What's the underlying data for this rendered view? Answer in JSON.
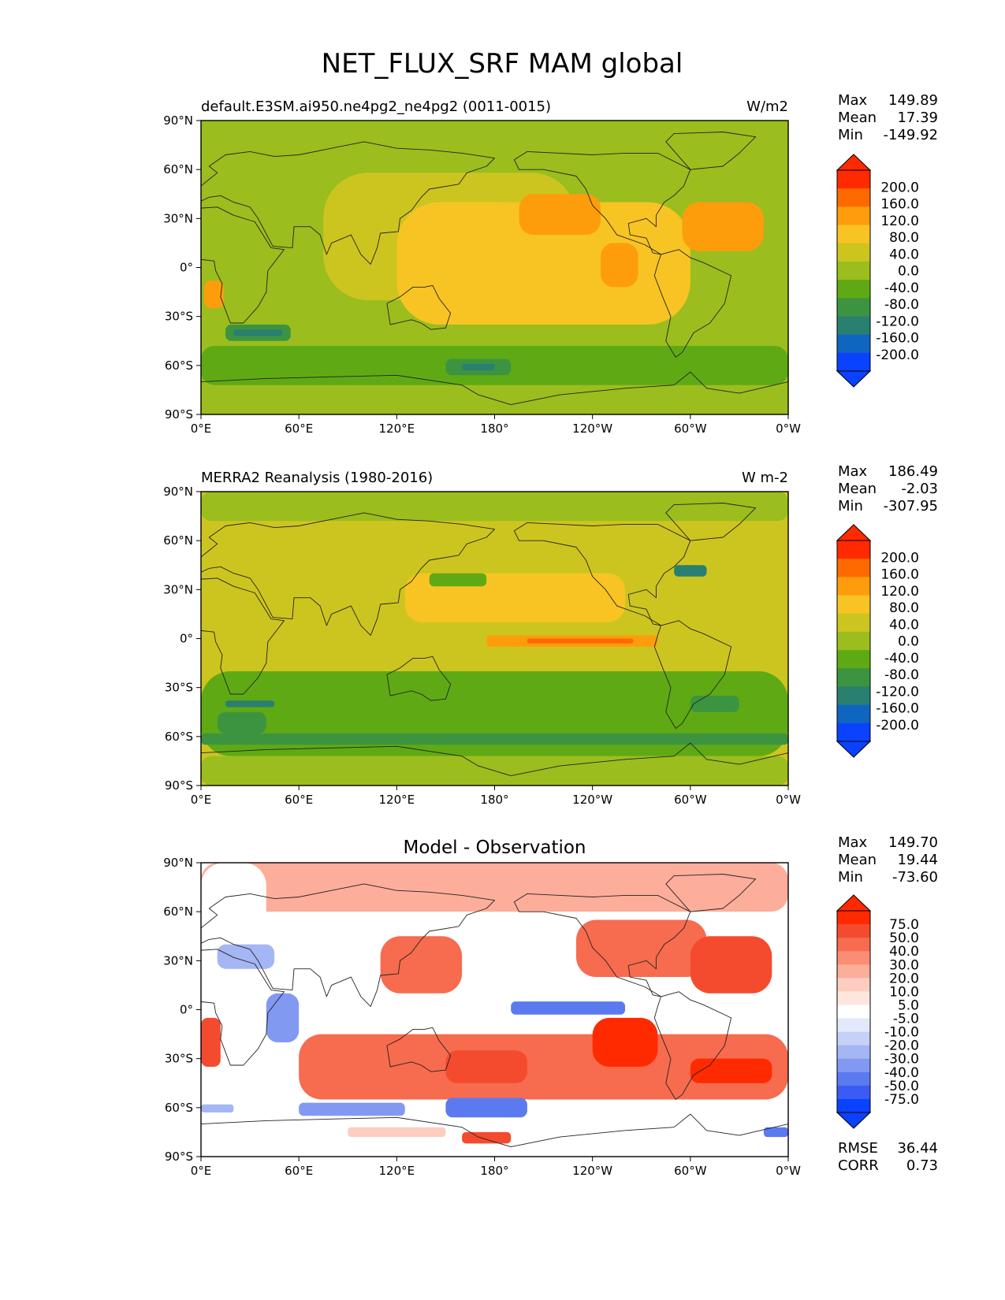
{
  "figure_title": "NET_FLUX_SRF MAM global",
  "chart_data": [
    {
      "type": "heatmap",
      "title": "",
      "subtitle_left": "default.E3SM.ai950.ne4pg2_ne4pg2 (0011-0015)",
      "subtitle_right": "W/m2",
      "stats": [
        {
          "label": "Max",
          "value": "149.89"
        },
        {
          "label": "Mean",
          "value": "17.39"
        },
        {
          "label": "Min",
          "value": "-149.92"
        }
      ],
      "x_ticks": [
        "0°E",
        "60°E",
        "120°E",
        "180°",
        "120°W",
        "60°W",
        "0°W"
      ],
      "y_ticks": [
        "90°N",
        "60°N",
        "30°N",
        "0°",
        "30°S",
        "60°S",
        "90°S"
      ],
      "xlim": [
        0,
        360
      ],
      "ylim": [
        -90,
        90
      ],
      "colorbar": {
        "labels": [
          "200.0",
          "160.0",
          "120.0",
          "80.0",
          "40.0",
          "0.0",
          "-40.0",
          "-80.0",
          "-120.0",
          "-160.0",
          "-200.0"
        ],
        "colors": [
          "#ff2a00",
          "#ff6a00",
          "#fd9d0c",
          "#f8c423",
          "#cdc51f",
          "#9bbd1e",
          "#5faa14",
          "#3d9440",
          "#2a8070",
          "#0f66c0",
          "#0a42ff"
        ],
        "extend_top": "#ff2a00",
        "extend_bottom": "#0a42ff"
      },
      "field": {
        "background": "#9bbd1e",
        "regions": [
          {
            "lon": [
              75,
              230
            ],
            "lat": [
              -20,
              58
            ],
            "color": "#cdc51f"
          },
          {
            "lon": [
              120,
              300
            ],
            "lat": [
              -35,
              40
            ],
            "color": "#f8c423"
          },
          {
            "lon": [
              195,
              245
            ],
            "lat": [
              20,
              45
            ],
            "color": "#fd9d0c"
          },
          {
            "lon": [
              245,
              268
            ],
            "lat": [
              -12,
              15
            ],
            "color": "#fd9d0c"
          },
          {
            "lon": [
              295,
              345
            ],
            "lat": [
              10,
              40
            ],
            "color": "#fd9d0c"
          },
          {
            "lon": [
              2,
              14
            ],
            "lat": [
              -25,
              -8
            ],
            "color": "#fd9d0c"
          },
          {
            "lon": [
              0,
              360
            ],
            "lat": [
              -72,
              -48
            ],
            "color": "#5faa14"
          },
          {
            "lon": [
              15,
              55
            ],
            "lat": [
              -45,
              -35
            ],
            "color": "#3d9440"
          },
          {
            "lon": [
              150,
              190
            ],
            "lat": [
              -66,
              -56
            ],
            "color": "#3d9440"
          },
          {
            "lon": [
              20,
              50
            ],
            "lat": [
              -42,
              -38
            ],
            "color": "#2a8070"
          },
          {
            "lon": [
              160,
              180
            ],
            "lat": [
              -63,
              -59
            ],
            "color": "#2a8070"
          }
        ]
      }
    },
    {
      "type": "heatmap",
      "title": "",
      "subtitle_left": "MERRA2 Reanalysis (1980-2016)",
      "subtitle_right": "W m-2",
      "stats": [
        {
          "label": "Max",
          "value": "186.49"
        },
        {
          "label": "Mean",
          "value": "-2.03"
        },
        {
          "label": "Min",
          "value": "-307.95"
        }
      ],
      "x_ticks": [
        "0°E",
        "60°E",
        "120°E",
        "180°",
        "120°W",
        "60°W",
        "0°W"
      ],
      "y_ticks": [
        "90°N",
        "60°N",
        "30°N",
        "0°",
        "30°S",
        "60°S",
        "90°S"
      ],
      "xlim": [
        0,
        360
      ],
      "ylim": [
        -90,
        90
      ],
      "colorbar": {
        "labels": [
          "200.0",
          "160.0",
          "120.0",
          "80.0",
          "40.0",
          "0.0",
          "-40.0",
          "-80.0",
          "-120.0",
          "-160.0",
          "-200.0"
        ],
        "colors": [
          "#ff2a00",
          "#ff6a00",
          "#fd9d0c",
          "#f8c423",
          "#cdc51f",
          "#9bbd1e",
          "#5faa14",
          "#3d9440",
          "#2a8070",
          "#0f66c0",
          "#0a42ff"
        ],
        "extend_top": "#ff2a00",
        "extend_bottom": "#0a42ff"
      },
      "field": {
        "background": "#cdc51f",
        "regions": [
          {
            "lon": [
              0,
              360
            ],
            "lat": [
              -72,
              -20
            ],
            "color": "#5faa14"
          },
          {
            "lon": [
              0,
              360
            ],
            "lat": [
              -90,
              -72
            ],
            "color": "#9bbd1e"
          },
          {
            "lon": [
              0,
              360
            ],
            "lat": [
              72,
              90
            ],
            "color": "#9bbd1e"
          },
          {
            "lon": [
              125,
              260
            ],
            "lat": [
              10,
              40
            ],
            "color": "#f8c423"
          },
          {
            "lon": [
              175,
              280
            ],
            "lat": [
              -5,
              2
            ],
            "color": "#fd9d0c"
          },
          {
            "lon": [
              200,
              265
            ],
            "lat": [
              -3,
              0
            ],
            "color": "#ff6a00"
          },
          {
            "lon": [
              140,
              175
            ],
            "lat": [
              32,
              40
            ],
            "color": "#5faa14"
          },
          {
            "lon": [
              290,
              310
            ],
            "lat": [
              38,
              45
            ],
            "color": "#2a8070"
          },
          {
            "lon": [
              15,
              45
            ],
            "lat": [
              -42,
              -38
            ],
            "color": "#2a8070"
          },
          {
            "lon": [
              10,
              40
            ],
            "lat": [
              -58,
              -45
            ],
            "color": "#3d9440"
          },
          {
            "lon": [
              300,
              330
            ],
            "lat": [
              -45,
              -35
            ],
            "color": "#3d9440"
          },
          {
            "lon": [
              0,
              360
            ],
            "lat": [
              -65,
              -58
            ],
            "color": "#3d9440"
          }
        ]
      }
    },
    {
      "type": "heatmap",
      "title": "Model - Observation",
      "subtitle_left": "",
      "subtitle_right": "",
      "stats": [
        {
          "label": "Max",
          "value": "149.70"
        },
        {
          "label": "Mean",
          "value": "19.44"
        },
        {
          "label": "Min",
          "value": "-73.60"
        }
      ],
      "extra_stats": [
        {
          "label": "RMSE",
          "value": "36.44"
        },
        {
          "label": "CORR",
          "value": "0.73"
        }
      ],
      "x_ticks": [
        "0°E",
        "60°E",
        "120°E",
        "180°",
        "120°W",
        "60°W",
        "0°W"
      ],
      "y_ticks": [
        "90°N",
        "60°N",
        "30°N",
        "0°",
        "30°S",
        "60°S",
        "90°S"
      ],
      "xlim": [
        0,
        360
      ],
      "ylim": [
        -90,
        90
      ],
      "colorbar": {
        "labels": [
          "75.0",
          "50.0",
          "40.0",
          "30.0",
          "20.0",
          "10.0",
          "5.0",
          "-5.0",
          "-10.0",
          "-20.0",
          "-30.0",
          "-40.0",
          "-50.0",
          "-75.0"
        ],
        "colors": [
          "#ff2a00",
          "#f44b2f",
          "#f76b4f",
          "#fa8d74",
          "#fcae9b",
          "#fdcdc1",
          "#fee6df",
          "#ffffff",
          "#e3e9fb",
          "#c6d1f7",
          "#a4b6f4",
          "#8299f2",
          "#5c7af0",
          "#3a5cf4",
          "#0a42ff"
        ],
        "extend_top": "#ff2a00",
        "extend_bottom": "#0a42ff"
      },
      "field": {
        "background": "#ffffff",
        "regions": [
          {
            "lon": [
              0,
              360
            ],
            "lat": [
              60,
              90
            ],
            "color": "#fcae9b"
          },
          {
            "lon": [
              0,
              40
            ],
            "lat": [
              5,
              90
            ],
            "color": "#ffffff"
          },
          {
            "lon": [
              10,
              45
            ],
            "lat": [
              25,
              40
            ],
            "color": "#a4b6f4"
          },
          {
            "lon": [
              40,
              60
            ],
            "lat": [
              -20,
              10
            ],
            "color": "#8299f2"
          },
          {
            "lon": [
              110,
              160
            ],
            "lat": [
              10,
              45
            ],
            "color": "#f76b4f"
          },
          {
            "lon": [
              230,
              310
            ],
            "lat": [
              20,
              55
            ],
            "color": "#f76b4f"
          },
          {
            "lon": [
              300,
              350
            ],
            "lat": [
              10,
              45
            ],
            "color": "#f44b2f"
          },
          {
            "lon": [
              60,
              360
            ],
            "lat": [
              -55,
              -15
            ],
            "color": "#f76b4f"
          },
          {
            "lon": [
              150,
              200
            ],
            "lat": [
              -45,
              -25
            ],
            "color": "#f44b2f"
          },
          {
            "lon": [
              240,
              280
            ],
            "lat": [
              -35,
              -5
            ],
            "color": "#ff2a00"
          },
          {
            "lon": [
              300,
              350
            ],
            "lat": [
              -45,
              -30
            ],
            "color": "#ff2a00"
          },
          {
            "lon": [
              0,
              12
            ],
            "lat": [
              -35,
              -5
            ],
            "color": "#f44b2f"
          },
          {
            "lon": [
              190,
              260
            ],
            "lat": [
              -3,
              5
            ],
            "color": "#5c7af0"
          },
          {
            "lon": [
              60,
              125
            ],
            "lat": [
              -65,
              -57
            ],
            "color": "#8299f2"
          },
          {
            "lon": [
              150,
              200
            ],
            "lat": [
              -66,
              -54
            ],
            "color": "#5c7af0"
          },
          {
            "lon": [
              0,
              20
            ],
            "lat": [
              -63,
              -58
            ],
            "color": "#a4b6f4"
          },
          {
            "lon": [
              345,
              360
            ],
            "lat": [
              -78,
              -72
            ],
            "color": "#5c7af0"
          },
          {
            "lon": [
              160,
              190
            ],
            "lat": [
              -82,
              -75
            ],
            "color": "#f44b2f"
          },
          {
            "lon": [
              90,
              150
            ],
            "lat": [
              -78,
              -72
            ],
            "color": "#fdcdc1"
          }
        ]
      }
    }
  ]
}
